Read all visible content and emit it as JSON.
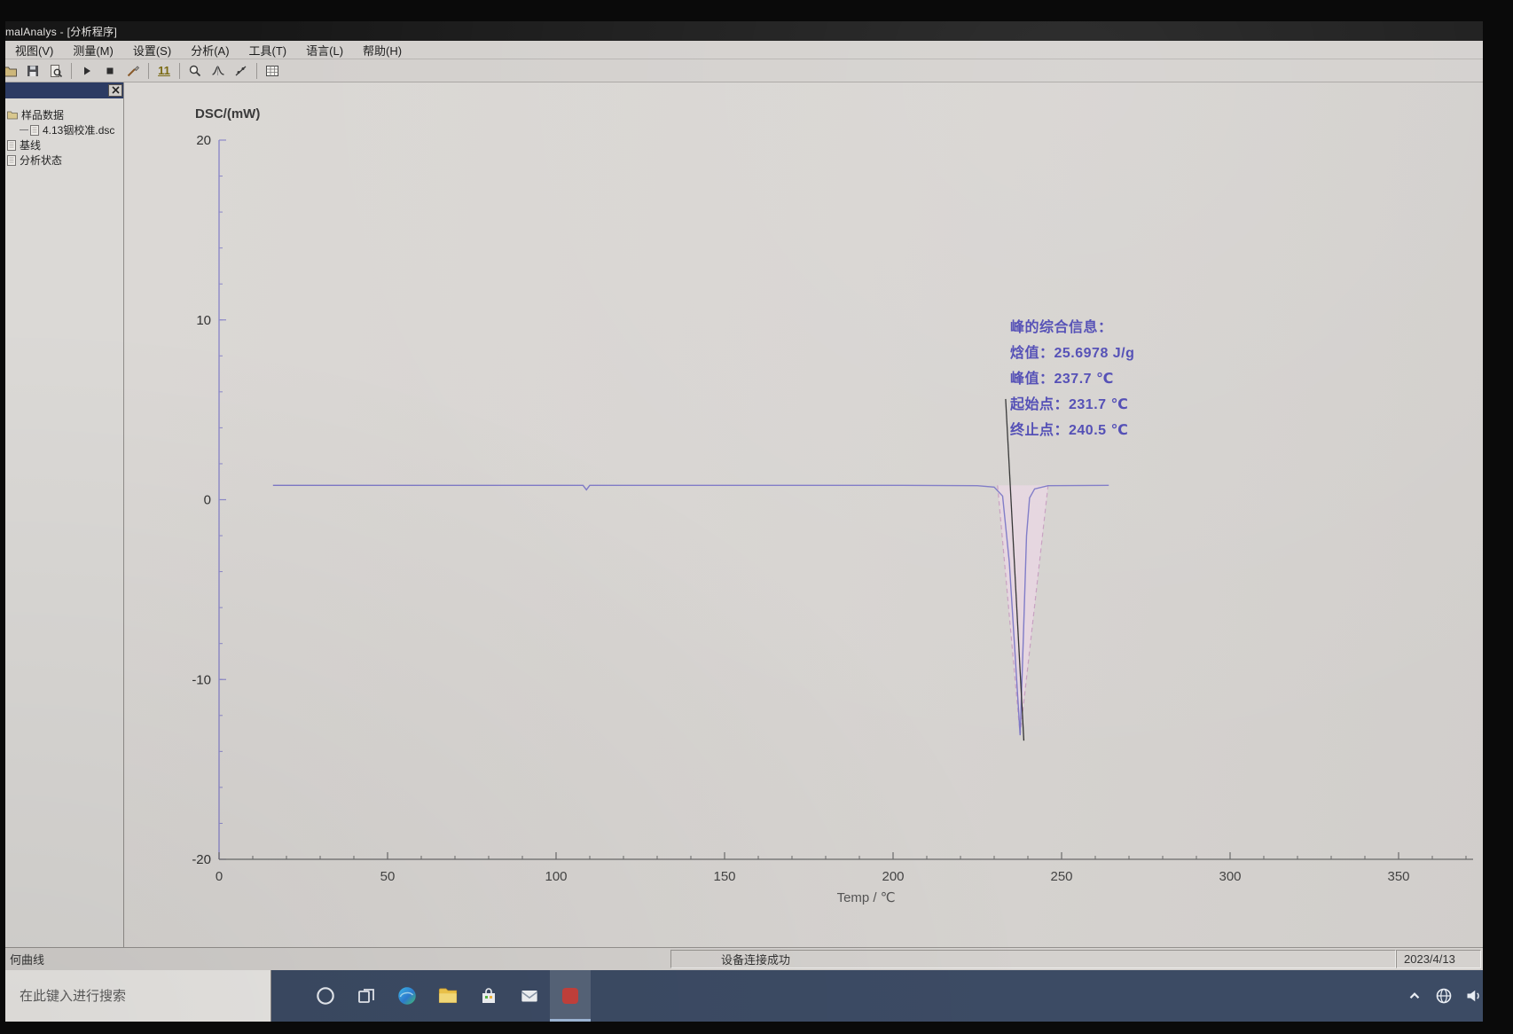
{
  "window": {
    "title_visible": "malAnalys - [分析程序]"
  },
  "menu_bar": {
    "items": [
      {
        "id": "view",
        "label": "视图(V)"
      },
      {
        "id": "measure",
        "label": "测量(M)"
      },
      {
        "id": "settings",
        "label": "设置(S)"
      },
      {
        "id": "analysis",
        "label": "分析(A)"
      },
      {
        "id": "tools",
        "label": "工具(T)"
      },
      {
        "id": "language",
        "label": "语言(L)"
      },
      {
        "id": "help",
        "label": "帮助(H)"
      }
    ]
  },
  "toolbar": {
    "badge": "11",
    "buttons": [
      "open",
      "save",
      "print-preview",
      "|",
      "start-run",
      "stop-run",
      "brush",
      "|",
      "font-size-11",
      "|",
      "zoom",
      "peak-analysis",
      "tangent-tool",
      "|",
      "report-grid"
    ]
  },
  "sidebar": {
    "tree": [
      {
        "id": "sample-data",
        "label": "样品数据",
        "level": 0,
        "icon": "folder-icon"
      },
      {
        "id": "calibration-file",
        "label": "4.13铟校准.dsc",
        "level": 1,
        "icon": "doc-icon"
      },
      {
        "id": "baseline",
        "label": "基线",
        "level": 0,
        "icon": "doc-icon"
      },
      {
        "id": "analysis-status",
        "label": "分析状态",
        "level": 0,
        "icon": "doc-icon"
      }
    ]
  },
  "chart_data": {
    "type": "line",
    "title": "",
    "xlabel": "Temp / ℃",
    "ylabel": "DSC/(mW)",
    "xlim": [
      0,
      370
    ],
    "ylim": [
      -20,
      20
    ],
    "x_ticks": [
      0,
      50,
      100,
      150,
      200,
      250,
      300,
      350
    ],
    "x_minor_step": 10,
    "y_ticks": [
      20,
      10,
      0,
      -10,
      -20
    ],
    "y_minor_step": 2,
    "grid": false,
    "axis_color_y": "#8c88c8",
    "axis_color_x": "#6a6a6a",
    "series": [
      {
        "name": "DSC curve",
        "color": "#7d78c6",
        "x": [
          16,
          60,
          108,
          109,
          110,
          160,
          200,
          225,
          230,
          232.5,
          234.5,
          236,
          237.7,
          238.6,
          239.6,
          240.5,
          242,
          246,
          264
        ],
        "y": [
          0.8,
          0.8,
          0.8,
          0.55,
          0.8,
          0.8,
          0.8,
          0.78,
          0.7,
          0.2,
          -3.5,
          -8,
          -13.1,
          -8,
          -2,
          0.1,
          0.6,
          0.78,
          0.8
        ]
      }
    ],
    "peak_region": {
      "fill": "#e7d6e2",
      "dash_color": "#c79fc0",
      "x": [
        231,
        237.7,
        246
      ],
      "y": [
        0.8,
        -13.1,
        0.8
      ],
      "baseline_y": 0.8
    },
    "marker_line": {
      "color": "#2f2f2f",
      "x1": 233.4,
      "y1": 5.6,
      "x2": 238.8,
      "y2": -13.4
    },
    "annotation": {
      "color": "#4b46b2",
      "header": "峰的综合信息：",
      "lines": [
        "焓值：25.6978 J/g",
        "峰值：237.7 ℃",
        "起始点：231.7 ℃",
        "终止点：240.5 ℃"
      ],
      "values": {
        "enthalpy_J_per_g": 25.6978,
        "peak_C": 237.7,
        "onset_C": 231.7,
        "end_C": 240.5
      }
    }
  },
  "status_bar": {
    "left": "何曲线",
    "center": "设备连接成功",
    "right": "2023/4/13"
  },
  "taskbar": {
    "search_placeholder": "在此键入进行搜索",
    "apps": [
      {
        "id": "cortana"
      },
      {
        "id": "task-view"
      },
      {
        "id": "edge"
      },
      {
        "id": "file-explorer"
      },
      {
        "id": "store"
      },
      {
        "id": "mail"
      },
      {
        "id": "dsc-app",
        "active": true
      }
    ],
    "tray": [
      {
        "id": "chevron-up"
      },
      {
        "id": "network-globe"
      },
      {
        "id": "volume"
      }
    ]
  }
}
